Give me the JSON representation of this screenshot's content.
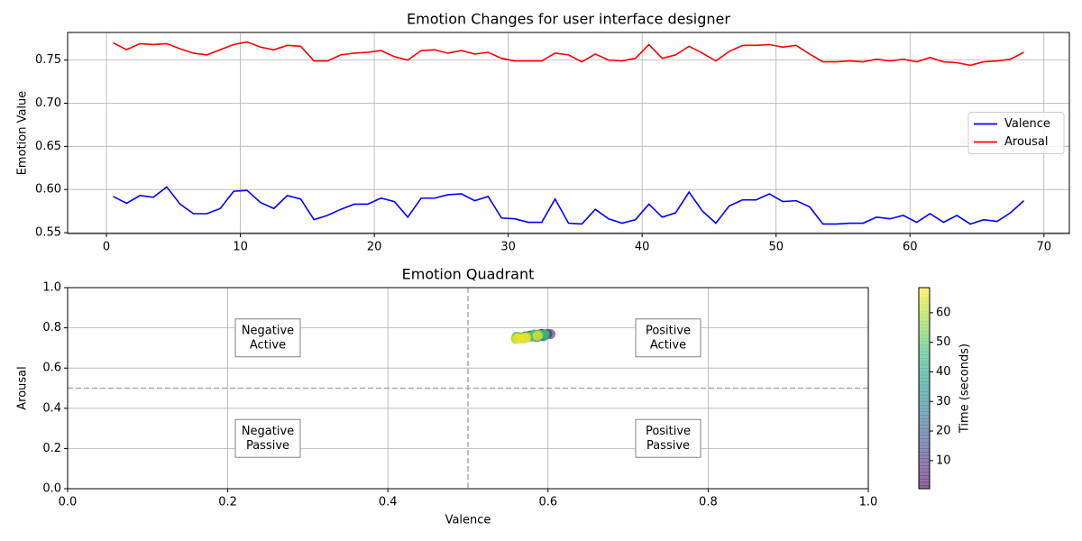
{
  "chart_data": [
    {
      "type": "line",
      "title": "Emotion Changes for user interface designer",
      "ylabel": "Emotion Value",
      "x": [
        0.5,
        1.5,
        2.5,
        3.5,
        4.5,
        5.5,
        6.5,
        7.5,
        8.5,
        9.5,
        10.5,
        11.5,
        12.5,
        13.5,
        14.5,
        15.5,
        16.5,
        17.5,
        18.5,
        19.5,
        20.5,
        21.5,
        22.5,
        23.5,
        24.5,
        25.5,
        26.5,
        27.5,
        28.5,
        29.5,
        30.5,
        31.5,
        32.5,
        33.5,
        34.5,
        35.5,
        36.5,
        37.5,
        38.5,
        39.5,
        40.5,
        41.5,
        42.5,
        43.5,
        44.5,
        45.5,
        46.5,
        47.5,
        48.5,
        49.5,
        50.5,
        51.5,
        52.5,
        53.5,
        54.5,
        55.5,
        56.5,
        57.5,
        58.5,
        59.5,
        60.5,
        61.5,
        62.5,
        63.5,
        64.5,
        65.5,
        66.5,
        67.5,
        68.5
      ],
      "series": [
        {
          "name": "Valence",
          "color": "#0000ff",
          "values": [
            0.592,
            0.584,
            0.593,
            0.591,
            0.603,
            0.583,
            0.572,
            0.572,
            0.578,
            0.598,
            0.599,
            0.585,
            0.578,
            0.593,
            0.589,
            0.565,
            0.57,
            0.577,
            0.583,
            0.583,
            0.59,
            0.586,
            0.568,
            0.59,
            0.59,
            0.594,
            0.595,
            0.587,
            0.592,
            0.567,
            0.566,
            0.562,
            0.562,
            0.589,
            0.561,
            0.56,
            0.577,
            0.566,
            0.561,
            0.565,
            0.583,
            0.568,
            0.573,
            0.597,
            0.575,
            0.561,
            0.581,
            0.588,
            0.588,
            0.595,
            0.586,
            0.587,
            0.58,
            0.56,
            0.56,
            0.561,
            0.561,
            0.568,
            0.566,
            0.57,
            0.562,
            0.572,
            0.562,
            0.57,
            0.56,
            0.565,
            0.563,
            0.573,
            0.587
          ]
        },
        {
          "name": "Arousal",
          "color": "#ff0000",
          "values": [
            0.77,
            0.762,
            0.769,
            0.768,
            0.769,
            0.763,
            0.758,
            0.756,
            0.762,
            0.768,
            0.771,
            0.765,
            0.762,
            0.767,
            0.766,
            0.749,
            0.749,
            0.756,
            0.758,
            0.759,
            0.761,
            0.754,
            0.75,
            0.761,
            0.762,
            0.758,
            0.761,
            0.757,
            0.759,
            0.752,
            0.749,
            0.749,
            0.749,
            0.758,
            0.756,
            0.748,
            0.757,
            0.75,
            0.749,
            0.752,
            0.768,
            0.752,
            0.756,
            0.766,
            0.758,
            0.749,
            0.76,
            0.767,
            0.767,
            0.768,
            0.765,
            0.767,
            0.757,
            0.748,
            0.748,
            0.749,
            0.748,
            0.751,
            0.749,
            0.751,
            0.748,
            0.753,
            0.748,
            0.747,
            0.744,
            0.748,
            0.749,
            0.751,
            0.759
          ]
        }
      ],
      "xlim": [
        -2.9,
        71.9
      ],
      "xticks": [
        0,
        10,
        20,
        30,
        40,
        50,
        60,
        70
      ],
      "ylim": [
        0.549,
        0.782
      ],
      "yticks": [
        0.55,
        {
          "value": 0.6,
          "label": "0.60"
        },
        0.65,
        {
          "value": 0.7,
          "label": "0.70"
        },
        0.75
      ],
      "grid": true,
      "legend": "center right"
    },
    {
      "type": "scatter",
      "title": "Emotion Quadrant",
      "xlabel": "Valence",
      "ylabel": "Arousal",
      "x": [
        0.592,
        0.584,
        0.593,
        0.591,
        0.603,
        0.583,
        0.572,
        0.572,
        0.578,
        0.598,
        0.599,
        0.585,
        0.578,
        0.593,
        0.589,
        0.565,
        0.57,
        0.577,
        0.583,
        0.583,
        0.59,
        0.586,
        0.568,
        0.59,
        0.59,
        0.594,
        0.595,
        0.587,
        0.592,
        0.567,
        0.566,
        0.562,
        0.562,
        0.589,
        0.561,
        0.56,
        0.577,
        0.566,
        0.561,
        0.565,
        0.583,
        0.568,
        0.573,
        0.597,
        0.575,
        0.561,
        0.581,
        0.588,
        0.588,
        0.595,
        0.586,
        0.587,
        0.58,
        0.56,
        0.56,
        0.561,
        0.561,
        0.568,
        0.566,
        0.57,
        0.562,
        0.572,
        0.562,
        0.57,
        0.56,
        0.565,
        0.563,
        0.573,
        0.587
      ],
      "y": [
        0.77,
        0.762,
        0.769,
        0.768,
        0.769,
        0.763,
        0.758,
        0.756,
        0.762,
        0.768,
        0.771,
        0.765,
        0.762,
        0.767,
        0.766,
        0.749,
        0.749,
        0.756,
        0.758,
        0.759,
        0.761,
        0.754,
        0.75,
        0.761,
        0.762,
        0.758,
        0.761,
        0.757,
        0.759,
        0.752,
        0.749,
        0.749,
        0.749,
        0.758,
        0.756,
        0.748,
        0.757,
        0.75,
        0.749,
        0.752,
        0.768,
        0.752,
        0.756,
        0.766,
        0.758,
        0.749,
        0.76,
        0.767,
        0.767,
        0.768,
        0.765,
        0.767,
        0.757,
        0.748,
        0.748,
        0.749,
        0.748,
        0.751,
        0.749,
        0.751,
        0.748,
        0.753,
        0.748,
        0.747,
        0.744,
        0.748,
        0.749,
        0.751,
        0.759
      ],
      "c": [
        0.5,
        1.5,
        2.5,
        3.5,
        4.5,
        5.5,
        6.5,
        7.5,
        8.5,
        9.5,
        10.5,
        11.5,
        12.5,
        13.5,
        14.5,
        15.5,
        16.5,
        17.5,
        18.5,
        19.5,
        20.5,
        21.5,
        22.5,
        23.5,
        24.5,
        25.5,
        26.5,
        27.5,
        28.5,
        29.5,
        30.5,
        31.5,
        32.5,
        33.5,
        34.5,
        35.5,
        36.5,
        37.5,
        38.5,
        39.5,
        40.5,
        41.5,
        42.5,
        43.5,
        44.5,
        45.5,
        46.5,
        47.5,
        48.5,
        49.5,
        50.5,
        51.5,
        52.5,
        53.5,
        54.5,
        55.5,
        56.5,
        57.5,
        58.5,
        59.5,
        60.5,
        61.5,
        62.5,
        63.5,
        64.5,
        65.5,
        66.5,
        67.5,
        68.5
      ],
      "colormap": "viridis",
      "xlim": [
        0,
        1
      ],
      "xticks": [
        {
          "value": 0,
          "label": "0.0"
        },
        0.2,
        0.4,
        0.6,
        0.8,
        {
          "value": 1,
          "label": "1.0"
        }
      ],
      "ylim": [
        0,
        1
      ],
      "yticks": [
        {
          "value": 0,
          "label": "0.0"
        },
        0.2,
        0.4,
        0.6,
        0.8,
        {
          "value": 1,
          "label": "1.0"
        }
      ],
      "grid": true,
      "reference_lines": {
        "x": 0.5,
        "y": 0.5
      },
      "annotations": [
        {
          "lines": [
            "Negative",
            "Active"
          ],
          "x": 0.25,
          "y": 0.75
        },
        {
          "lines": [
            "Positive",
            "Active"
          ],
          "x": 0.75,
          "y": 0.75
        },
        {
          "lines": [
            "Negative",
            "Passive"
          ],
          "x": 0.25,
          "y": 0.25
        },
        {
          "lines": [
            "Positive",
            "Passive"
          ],
          "x": 0.75,
          "y": 0.25
        }
      ],
      "colorbar": {
        "label": "Time (seconds)",
        "lim": [
          0.5,
          68.5
        ],
        "ticks": [
          10,
          20,
          30,
          40,
          50,
          60
        ]
      }
    }
  ]
}
